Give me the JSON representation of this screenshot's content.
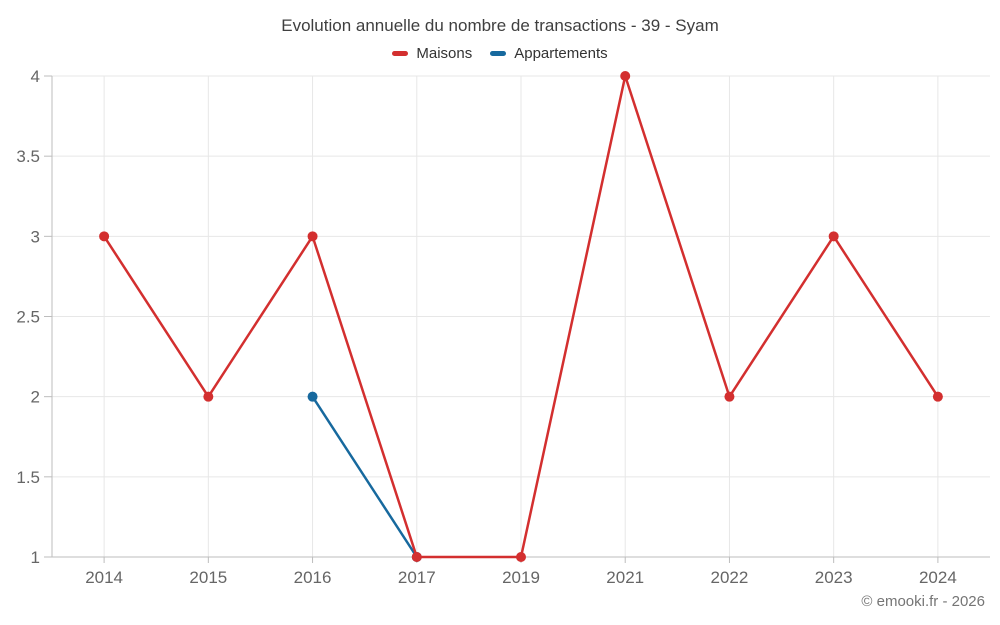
{
  "title": "Evolution annuelle du nombre de transactions - 39 - Syam",
  "footer": "© emooki.fr - 2026",
  "colors": {
    "maisons": "#d32f2f",
    "appartements": "#17699e",
    "grid": "#e7e7e7",
    "axis": "#bdbdbd",
    "tick_label": "#666666",
    "title_text": "#3f3f3f",
    "legend_text": "#333333",
    "footer_text": "#757575",
    "background": "#ffffff"
  },
  "chart_data": {
    "type": "line",
    "title": "Evolution annuelle du nombre de transactions - 39 - Syam",
    "categories": [
      "2014",
      "2015",
      "2016",
      "2017",
      "2019",
      "2021",
      "2022",
      "2023",
      "2024"
    ],
    "series": [
      {
        "name": "Maisons",
        "color": "#d32f2f",
        "values": [
          3,
          2,
          3,
          1,
          1,
          4,
          2,
          3,
          2
        ]
      },
      {
        "name": "Appartements",
        "color": "#17699e",
        "values": [
          null,
          null,
          2,
          1,
          null,
          null,
          null,
          null,
          null
        ]
      }
    ],
    "xlabel": "",
    "ylabel": "",
    "ylim": [
      1,
      4
    ],
    "yticks": [
      1,
      1.5,
      2,
      2.5,
      3,
      3.5,
      4
    ],
    "ytick_labels": [
      "1",
      "1.5",
      "2",
      "2.5",
      "3",
      "3.5",
      "4"
    ],
    "grid": true,
    "legend_position": "top",
    "marker": "circle"
  }
}
